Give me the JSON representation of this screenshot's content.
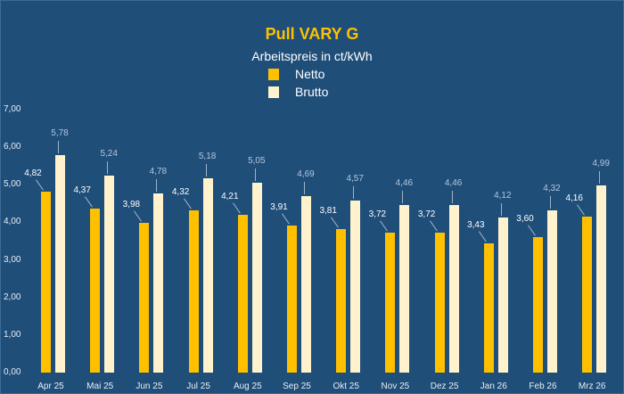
{
  "chart_data": {
    "type": "bar",
    "title": "Pull VARY G",
    "subtitle": "Arbeitspreis in ct/kWh",
    "xlabel": "",
    "ylabel": "",
    "ylim": [
      0,
      7
    ],
    "yticks": [
      "0,00",
      "1,00",
      "2,00",
      "3,00",
      "4,00",
      "5,00",
      "6,00",
      "7,00"
    ],
    "grid": false,
    "legend_position": "top",
    "categories": [
      "Apr 25",
      "Mai 25",
      "Jun 25",
      "Jul 25",
      "Aug 25",
      "Sep 25",
      "Okt 25",
      "Nov 25",
      "Dez 25",
      "Jan 26",
      "Feb 26",
      "Mrz 26"
    ],
    "series": [
      {
        "name": "Netto",
        "color": "#ffc000",
        "values": [
          4.82,
          4.37,
          3.98,
          4.32,
          4.21,
          3.91,
          3.81,
          3.72,
          3.72,
          3.43,
          3.6,
          4.16
        ],
        "labels": [
          "4,82",
          "4,37",
          "3,98",
          "4,32",
          "4,21",
          "3,91",
          "3,81",
          "3,72",
          "3,72",
          "3,43",
          "3,60",
          "4,16"
        ]
      },
      {
        "name": "Brutto",
        "color": "#fff2cc",
        "values": [
          5.78,
          5.24,
          4.78,
          5.18,
          5.05,
          4.69,
          4.57,
          4.46,
          4.46,
          4.12,
          4.32,
          4.99
        ],
        "labels": [
          "5,78",
          "5,24",
          "4,78",
          "5,18",
          "5,05",
          "4,69",
          "4,57",
          "4,46",
          "4,46",
          "4,12",
          "4,32",
          "4,99"
        ]
      }
    ]
  }
}
